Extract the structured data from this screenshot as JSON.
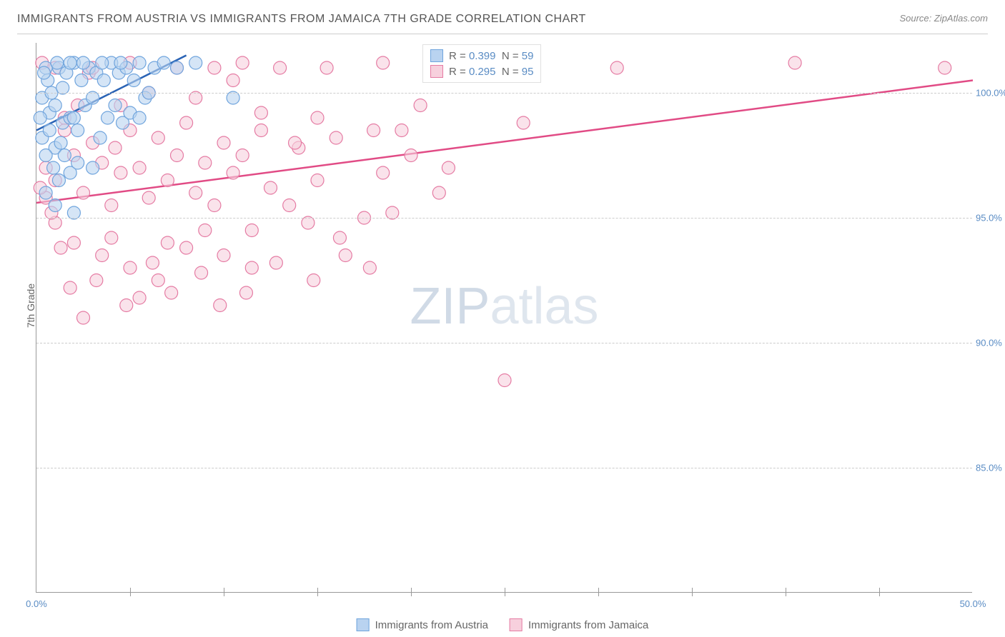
{
  "title": "IMMIGRANTS FROM AUSTRIA VS IMMIGRANTS FROM JAMAICA 7TH GRADE CORRELATION CHART",
  "source": "Source: ZipAtlas.com",
  "ylabel": "7th Grade",
  "watermark": {
    "bold": "ZIP",
    "light": "atlas"
  },
  "chart": {
    "type": "scatter",
    "xlim": [
      0,
      50
    ],
    "ylim": [
      80,
      102
    ],
    "xtick_minor": [
      5,
      10,
      15,
      20,
      25,
      30,
      35,
      40,
      45
    ],
    "xtick_labels": [
      {
        "x": 0,
        "label": "0.0%"
      },
      {
        "x": 50,
        "label": "50.0%"
      }
    ],
    "ytick_labels": [
      {
        "y": 85,
        "label": "85.0%"
      },
      {
        "y": 90,
        "label": "90.0%"
      },
      {
        "y": 95,
        "label": "95.0%"
      },
      {
        "y": 100,
        "label": "100.0%"
      }
    ],
    "background_color": "#ffffff",
    "grid_color": "#cccccc",
    "series": [
      {
        "name": "Immigrants from Austria",
        "color_fill": "#b9d3f0",
        "color_stroke": "#6fa4dd",
        "line_color": "#2a63b5",
        "R": "0.399",
        "N": "59",
        "trend": {
          "x1": 0,
          "y1": 98.5,
          "x2": 8,
          "y2": 101.5
        },
        "points": [
          [
            0.3,
            99.8
          ],
          [
            0.5,
            101.0
          ],
          [
            0.7,
            99.2
          ],
          [
            1.0,
            99.5
          ],
          [
            1.2,
            101.0
          ],
          [
            1.4,
            98.8
          ],
          [
            1.6,
            100.8
          ],
          [
            1.8,
            99.0
          ],
          [
            2.0,
            101.2
          ],
          [
            2.2,
            98.5
          ],
          [
            2.4,
            100.5
          ],
          [
            2.6,
            99.5
          ],
          [
            2.8,
            101.0
          ],
          [
            3.0,
            99.8
          ],
          [
            3.2,
            100.8
          ],
          [
            3.4,
            98.2
          ],
          [
            3.6,
            100.5
          ],
          [
            3.8,
            99.0
          ],
          [
            4.0,
            101.2
          ],
          [
            4.2,
            99.5
          ],
          [
            4.4,
            100.8
          ],
          [
            4.6,
            98.8
          ],
          [
            4.8,
            101.0
          ],
          [
            5.0,
            99.2
          ],
          [
            5.2,
            100.5
          ],
          [
            5.5,
            101.2
          ],
          [
            5.8,
            99.8
          ],
          [
            6.0,
            100.0
          ],
          [
            6.3,
            101.0
          ],
          [
            1.0,
            97.8
          ],
          [
            1.5,
            97.5
          ],
          [
            2.0,
            99.0
          ],
          [
            0.8,
            100.0
          ],
          [
            1.3,
            98.0
          ],
          [
            0.5,
            97.5
          ],
          [
            0.3,
            98.2
          ],
          [
            0.6,
            100.5
          ],
          [
            0.9,
            97.0
          ],
          [
            1.1,
            101.2
          ],
          [
            1.4,
            100.2
          ],
          [
            0.2,
            99.0
          ],
          [
            0.4,
            100.8
          ],
          [
            0.7,
            98.5
          ],
          [
            2.5,
            101.2
          ],
          [
            3.5,
            101.2
          ],
          [
            4.5,
            101.2
          ],
          [
            1.8,
            96.8
          ],
          [
            1.2,
            96.5
          ],
          [
            2.2,
            97.2
          ],
          [
            6.8,
            101.2
          ],
          [
            5.5,
            99.0
          ],
          [
            2.0,
            95.2
          ],
          [
            8.5,
            101.2
          ],
          [
            10.5,
            99.8
          ],
          [
            3.0,
            97.0
          ],
          [
            7.5,
            101.0
          ],
          [
            0.5,
            96.0
          ],
          [
            1.0,
            95.5
          ],
          [
            1.8,
            101.2
          ]
        ]
      },
      {
        "name": "Immigrants from Jamaica",
        "color_fill": "#f7d0dd",
        "color_stroke": "#e57ba3",
        "line_color": "#e14b85",
        "R": "0.295",
        "N": "95",
        "trend": {
          "x1": 0,
          "y1": 95.6,
          "x2": 50,
          "y2": 100.5
        },
        "points": [
          [
            0.5,
            97.0
          ],
          [
            1.0,
            96.5
          ],
          [
            1.5,
            98.5
          ],
          [
            2.0,
            97.5
          ],
          [
            2.5,
            96.0
          ],
          [
            3.0,
            98.0
          ],
          [
            3.5,
            97.2
          ],
          [
            4.0,
            95.5
          ],
          [
            4.5,
            96.8
          ],
          [
            5.0,
            98.5
          ],
          [
            5.5,
            97.0
          ],
          [
            6.0,
            95.8
          ],
          [
            6.5,
            98.2
          ],
          [
            7.0,
            96.5
          ],
          [
            7.5,
            97.5
          ],
          [
            8.0,
            98.8
          ],
          [
            8.5,
            96.0
          ],
          [
            9.0,
            97.2
          ],
          [
            9.5,
            95.5
          ],
          [
            10.0,
            98.0
          ],
          [
            10.5,
            96.8
          ],
          [
            11.0,
            97.5
          ],
          [
            11.5,
            94.5
          ],
          [
            12.0,
            98.5
          ],
          [
            12.5,
            96.2
          ],
          [
            13.0,
            101.0
          ],
          [
            3.5,
            93.5
          ],
          [
            5.0,
            93.0
          ],
          [
            6.5,
            92.5
          ],
          [
            8.0,
            93.8
          ],
          [
            4.0,
            94.2
          ],
          [
            2.0,
            94.0
          ],
          [
            10.0,
            93.5
          ],
          [
            11.5,
            93.0
          ],
          [
            7.0,
            94.0
          ],
          [
            9.0,
            94.5
          ],
          [
            2.5,
            91.0
          ],
          [
            14.0,
            97.8
          ],
          [
            15.0,
            96.5
          ],
          [
            16.0,
            98.2
          ],
          [
            17.5,
            95.0
          ],
          [
            18.5,
            96.8
          ],
          [
            20.0,
            97.5
          ],
          [
            21.5,
            96.0
          ],
          [
            19.0,
            95.2
          ],
          [
            14.5,
            94.8
          ],
          [
            16.5,
            93.5
          ],
          [
            18.0,
            98.5
          ],
          [
            22.0,
            97.0
          ],
          [
            4.5,
            99.5
          ],
          [
            6.0,
            100.0
          ],
          [
            8.5,
            99.8
          ],
          [
            10.5,
            100.5
          ],
          [
            12.0,
            99.2
          ],
          [
            2.8,
            100.8
          ],
          [
            1.5,
            99.0
          ],
          [
            0.5,
            95.8
          ],
          [
            1.0,
            94.8
          ],
          [
            3.0,
            101.0
          ],
          [
            7.5,
            101.0
          ],
          [
            5.0,
            101.2
          ],
          [
            9.5,
            101.0
          ],
          [
            11.0,
            101.2
          ],
          [
            15.0,
            99.0
          ],
          [
            26.0,
            98.8
          ],
          [
            25.0,
            88.5
          ],
          [
            40.5,
            101.2
          ],
          [
            31.0,
            101.0
          ],
          [
            48.5,
            101.0
          ],
          [
            0.2,
            96.2
          ],
          [
            0.8,
            95.2
          ],
          [
            1.3,
            93.8
          ],
          [
            1.8,
            92.2
          ],
          [
            5.5,
            91.8
          ],
          [
            7.2,
            92.0
          ],
          [
            8.8,
            92.8
          ],
          [
            3.2,
            92.5
          ],
          [
            4.8,
            91.5
          ],
          [
            6.2,
            93.2
          ],
          [
            13.5,
            95.5
          ],
          [
            12.8,
            93.2
          ],
          [
            11.2,
            92.0
          ],
          [
            9.8,
            91.5
          ],
          [
            14.8,
            92.5
          ],
          [
            16.2,
            94.2
          ],
          [
            17.8,
            93.0
          ],
          [
            15.5,
            101.0
          ],
          [
            18.5,
            101.2
          ],
          [
            13.8,
            98.0
          ],
          [
            19.5,
            98.5
          ],
          [
            20.5,
            99.5
          ],
          [
            1.0,
            101.0
          ],
          [
            0.3,
            101.2
          ],
          [
            2.2,
            99.5
          ],
          [
            4.2,
            97.8
          ]
        ]
      }
    ]
  }
}
